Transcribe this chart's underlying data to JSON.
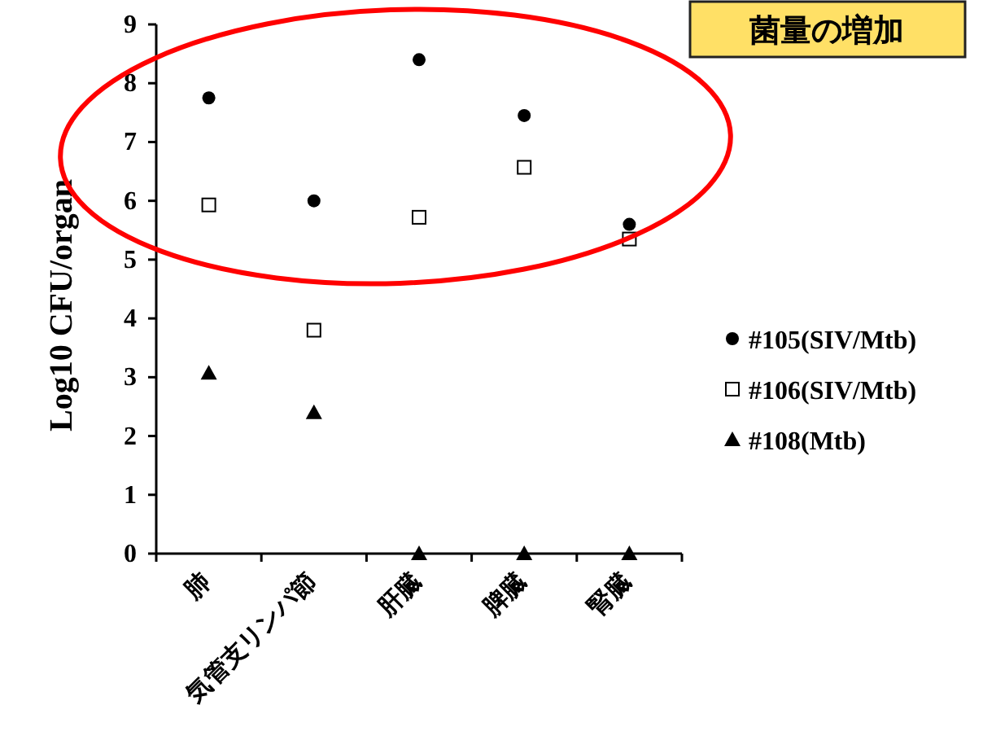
{
  "chart_data": {
    "type": "scatter",
    "ylabel": "Log10 CFU/organ",
    "categories": [
      "肺",
      "気管支リンパ節",
      "肝臓",
      "脾臓",
      "腎臓"
    ],
    "series": [
      {
        "name": "#105(SIV/Mtb)",
        "color": "#000000",
        "marker": "circle",
        "values": [
          7.75,
          6.0,
          8.4,
          7.45,
          5.6
        ]
      },
      {
        "name": "#106(SIV/Mtb)",
        "color": "#000000",
        "marker": "square",
        "values": [
          5.93,
          3.8,
          5.72,
          6.57,
          5.35
        ]
      },
      {
        "name": "#108(Mtb)",
        "color": "#000000",
        "marker": "triangle",
        "values": [
          3.07,
          2.4,
          0,
          0,
          0
        ]
      }
    ],
    "ylim": [
      0,
      9
    ],
    "yticks": [
      0,
      1,
      2,
      3,
      4,
      5,
      6,
      7,
      8,
      9
    ],
    "grid": false,
    "legend": "right",
    "annotations": [
      "菌量の増加"
    ]
  }
}
